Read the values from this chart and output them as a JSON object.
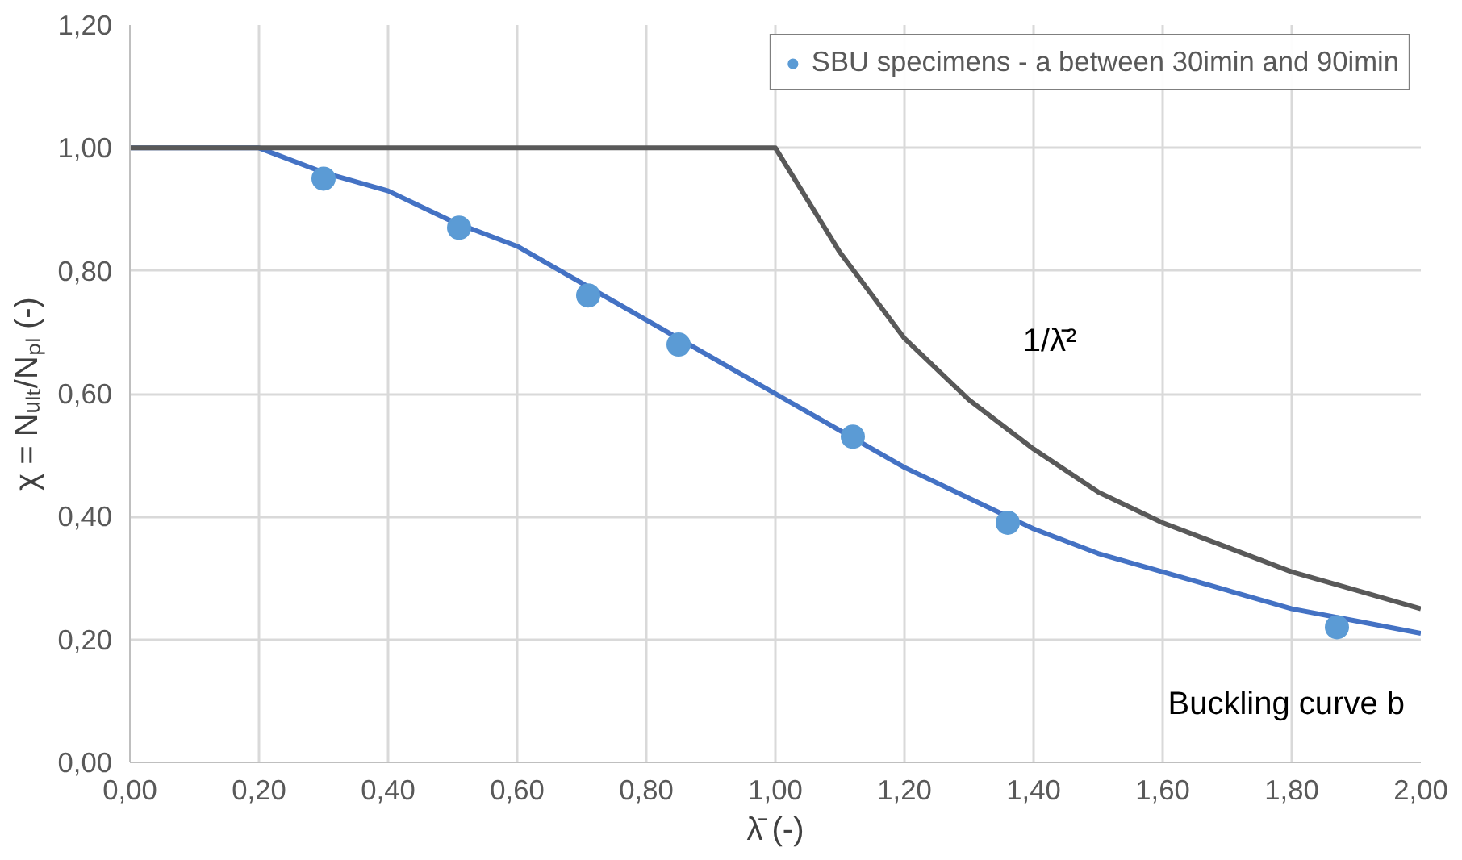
{
  "chart_data": {
    "type": "line",
    "xlabel": "λ̄ (-)",
    "ylabel": "χ = Nᵤₗₜ/Nₚₗ (-)",
    "xlim": [
      0,
      2
    ],
    "ylim": [
      0,
      1.2
    ],
    "xticks": [
      {
        "value": 0,
        "label": "0,00"
      },
      {
        "value": 0.2,
        "label": "0,20"
      },
      {
        "value": 0.4,
        "label": "0,40"
      },
      {
        "value": 0.6,
        "label": "0,60"
      },
      {
        "value": 0.8,
        "label": "0,80"
      },
      {
        "value": 1,
        "label": "1,00"
      },
      {
        "value": 1.2,
        "label": "1,20"
      },
      {
        "value": 1.4,
        "label": "1,40"
      },
      {
        "value": 1.6,
        "label": "1,60"
      },
      {
        "value": 1.8,
        "label": "1,80"
      },
      {
        "value": 2,
        "label": "2,00"
      }
    ],
    "yticks": [
      {
        "value": 0,
        "label": "0,00"
      },
      {
        "value": 0.2,
        "label": "0,20"
      },
      {
        "value": 0.4,
        "label": "0,40"
      },
      {
        "value": 0.6,
        "label": "0,60"
      },
      {
        "value": 0.8,
        "label": "0,80"
      },
      {
        "value": 1,
        "label": "1,00"
      },
      {
        "value": 1.2,
        "label": "1,20"
      }
    ],
    "grid": true,
    "legend": "top right",
    "series": [
      {
        "color": "#4472c4",
        "x": [
          0,
          0.2,
          0.3,
          0.4,
          0.5,
          0.6,
          0.7,
          0.8,
          0.9,
          1.0,
          1.1,
          1.2,
          1.3,
          1.4,
          1.5,
          1.6,
          1.7,
          1.8,
          1.9,
          2.0
        ],
        "values": [
          1,
          1,
          0.96,
          0.93,
          0.88,
          0.84,
          0.78,
          0.72,
          0.66,
          0.6,
          0.54,
          0.48,
          0.43,
          0.38,
          0.34,
          0.31,
          0.28,
          0.25,
          0.23,
          0.21
        ]
      },
      {
        "color": "#595959",
        "x": [
          0,
          1,
          1.1,
          1.2,
          1.3,
          1.4,
          1.5,
          1.6,
          1.7,
          1.8,
          1.9,
          2.0
        ],
        "values": [
          1,
          1,
          0.83,
          0.69,
          0.59,
          0.51,
          0.44,
          0.39,
          0.35,
          0.31,
          0.28,
          0.25
        ]
      },
      {
        "type": "scatter",
        "name": "SBU specimens - a between 30imin and 90imin",
        "color": "#5b9bd5",
        "x": [
          0.3,
          0.51,
          0.71,
          0.85,
          1.12,
          1.36,
          1.87
        ],
        "values": [
          0.95,
          0.87,
          0.76,
          0.68,
          0.53,
          0.39,
          0.22
        ]
      }
    ],
    "annotations": [
      "1/λ̄²",
      "Buckling curve b"
    ]
  }
}
